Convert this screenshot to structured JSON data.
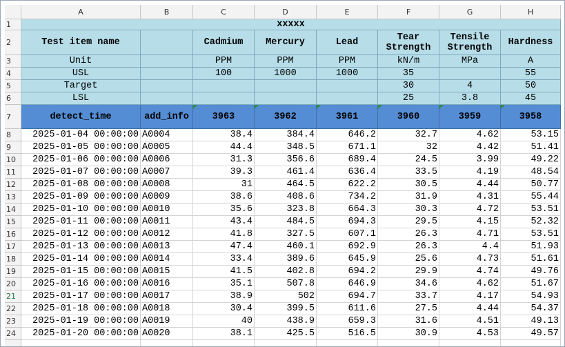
{
  "columns": [
    "A",
    "B",
    "C",
    "D",
    "E",
    "F",
    "G",
    "H"
  ],
  "row_numbers": [
    "1",
    "2",
    "3",
    "4",
    "5",
    "6",
    "7",
    "8",
    "9",
    "10",
    "11",
    "12",
    "13",
    "14",
    "15",
    "16",
    "17",
    "18",
    "19",
    "20",
    "21",
    "22",
    "23",
    "24"
  ],
  "title": "xxxxx",
  "spec_labels": {
    "name": "Test item name",
    "unit": "Unit",
    "usl": "USL",
    "target": "Target",
    "lsl": "LSL"
  },
  "items": [
    {
      "name": "Cadmium",
      "unit": "PPM",
      "usl": "100"
    },
    {
      "name": "Mercury",
      "unit": "PPM",
      "usl": "1000"
    },
    {
      "name": "Lead",
      "unit": "PPM",
      "usl": "1000"
    },
    {
      "name": "Tear Strength",
      "unit": "kN/m",
      "usl": "35",
      "target": "30",
      "lsl": "25"
    },
    {
      "name": "Tensile Strength",
      "unit": "MPa",
      "target": "4",
      "lsl": "3.8"
    },
    {
      "name": "Hardness",
      "unit": "A",
      "usl": "55",
      "target": "50",
      "lsl": "45"
    }
  ],
  "table_header": [
    "detect_time",
    "add_info",
    "3963",
    "3962",
    "3961",
    "3960",
    "3959",
    "3958"
  ],
  "rows": [
    [
      "2025-01-04 00:00:00",
      "A0004",
      "38.4",
      "384.4",
      "646.2",
      "32.7",
      "4.62",
      "53.15"
    ],
    [
      "2025-01-05 00:00:00",
      "A0005",
      "44.4",
      "348.5",
      "671.1",
      "32",
      "4.42",
      "51.41"
    ],
    [
      "2025-01-06 00:00:00",
      "A0006",
      "31.3",
      "356.6",
      "689.4",
      "24.5",
      "3.99",
      "49.22"
    ],
    [
      "2025-01-07 00:00:00",
      "A0007",
      "39.3",
      "461.4",
      "636.4",
      "33.5",
      "4.19",
      "48.54"
    ],
    [
      "2025-01-08 00:00:00",
      "A0008",
      "31",
      "464.5",
      "622.2",
      "30.5",
      "4.44",
      "50.77"
    ],
    [
      "2025-01-09 00:00:00",
      "A0009",
      "38.6",
      "408.6",
      "734.2",
      "31.9",
      "4.31",
      "55.44"
    ],
    [
      "2025-01-10 00:00:00",
      "A0010",
      "35.6",
      "323.8",
      "664.3",
      "30.3",
      "4.72",
      "53.51"
    ],
    [
      "2025-01-11 00:00:00",
      "A0011",
      "43.4",
      "484.5",
      "694.3",
      "29.5",
      "4.15",
      "52.32"
    ],
    [
      "2025-01-12 00:00:00",
      "A0012",
      "41.8",
      "327.5",
      "607.1",
      "26.3",
      "4.71",
      "53.51"
    ],
    [
      "2025-01-13 00:00:00",
      "A0013",
      "47.4",
      "460.1",
      "692.9",
      "26.3",
      "4.4",
      "51.93"
    ],
    [
      "2025-01-14 00:00:00",
      "A0014",
      "33.4",
      "389.6",
      "645.9",
      "25.6",
      "4.73",
      "51.61"
    ],
    [
      "2025-01-15 00:00:00",
      "A0015",
      "41.5",
      "402.8",
      "694.2",
      "29.9",
      "4.74",
      "49.76"
    ],
    [
      "2025-01-16 00:00:00",
      "A0016",
      "35.1",
      "507.8",
      "646.9",
      "34.6",
      "4.62",
      "51.67"
    ],
    [
      "2025-01-17 00:00:00",
      "A0017",
      "38.9",
      "502",
      "694.7",
      "33.7",
      "4.17",
      "54.93"
    ],
    [
      "2025-01-18 00:00:00",
      "A0018",
      "30.4",
      "399.5",
      "611.6",
      "27.5",
      "4.44",
      "54.37"
    ],
    [
      "2025-01-19 00:00:00",
      "A0019",
      "40",
      "438.9",
      "659.3",
      "31.6",
      "4.51",
      "49.13"
    ],
    [
      "2025-01-20 00:00:00",
      "A0020",
      "38.1",
      "425.5",
      "516.5",
      "30.9",
      "4.53",
      "49.57"
    ]
  ]
}
